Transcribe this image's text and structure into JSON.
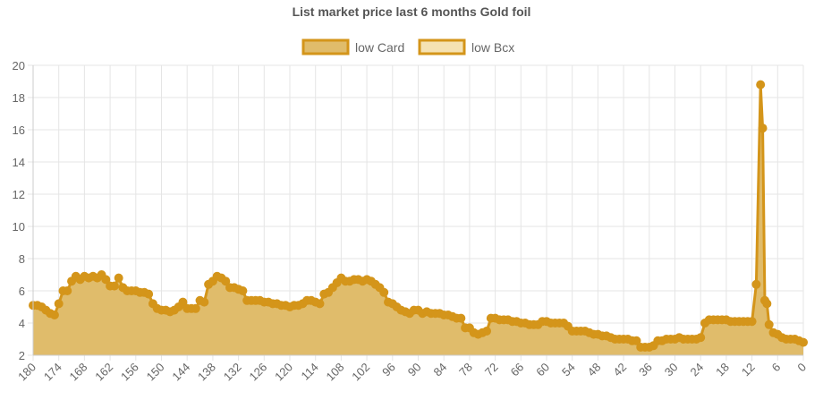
{
  "chart_data": {
    "type": "area",
    "title": "List market price last 6 months Gold foil",
    "legend_position": "top",
    "grid": true,
    "xlim": [
      180,
      0
    ],
    "ylim": [
      2,
      20
    ],
    "x_ticks": [
      180,
      174,
      168,
      162,
      156,
      150,
      144,
      138,
      132,
      126,
      120,
      114,
      108,
      102,
      96,
      90,
      84,
      78,
      72,
      66,
      60,
      54,
      48,
      42,
      36,
      30,
      24,
      18,
      12,
      6,
      0
    ],
    "y_ticks": [
      2,
      4,
      6,
      8,
      10,
      12,
      14,
      16,
      18,
      20
    ],
    "series": [
      {
        "name": "low Card",
        "color": "#d4951a",
        "fill": "#e0bc6b",
        "points": [
          [
            180,
            5.1
          ],
          [
            179,
            5.1
          ],
          [
            178,
            5.0
          ],
          [
            177,
            4.8
          ],
          [
            176,
            4.6
          ],
          [
            175,
            4.5
          ],
          [
            174,
            5.2
          ],
          [
            173,
            6.0
          ],
          [
            172,
            6.0
          ],
          [
            171,
            6.6
          ],
          [
            170,
            6.9
          ],
          [
            169,
            6.7
          ],
          [
            168,
            6.9
          ],
          [
            167,
            6.8
          ],
          [
            166,
            6.9
          ],
          [
            165,
            6.8
          ],
          [
            164,
            7.0
          ],
          [
            163,
            6.7
          ],
          [
            162,
            6.3
          ],
          [
            161,
            6.3
          ],
          [
            160,
            6.8
          ],
          [
            159,
            6.2
          ],
          [
            158,
            6.0
          ],
          [
            157,
            6.0
          ],
          [
            156,
            6.0
          ],
          [
            155,
            5.9
          ],
          [
            154,
            5.9
          ],
          [
            153,
            5.8
          ],
          [
            152,
            5.2
          ],
          [
            151,
            4.9
          ],
          [
            150,
            4.8
          ],
          [
            149,
            4.8
          ],
          [
            148,
            4.7
          ],
          [
            147,
            4.8
          ],
          [
            146,
            5.0
          ],
          [
            145,
            5.3
          ],
          [
            144,
            4.9
          ],
          [
            143,
            4.9
          ],
          [
            142,
            4.9
          ],
          [
            141,
            5.4
          ],
          [
            140,
            5.3
          ],
          [
            139,
            6.4
          ],
          [
            138,
            6.6
          ],
          [
            137,
            6.9
          ],
          [
            136,
            6.8
          ],
          [
            135,
            6.6
          ],
          [
            134,
            6.2
          ],
          [
            133,
            6.2
          ],
          [
            132,
            6.1
          ],
          [
            131,
            6.0
          ],
          [
            130,
            5.4
          ],
          [
            129,
            5.4
          ],
          [
            128,
            5.4
          ],
          [
            127,
            5.4
          ],
          [
            126,
            5.3
          ],
          [
            125,
            5.3
          ],
          [
            124,
            5.2
          ],
          [
            123,
            5.2
          ],
          [
            122,
            5.1
          ],
          [
            121,
            5.1
          ],
          [
            120,
            5.0
          ],
          [
            119,
            5.1
          ],
          [
            118,
            5.1
          ],
          [
            117,
            5.2
          ],
          [
            116,
            5.4
          ],
          [
            115,
            5.4
          ],
          [
            114,
            5.3
          ],
          [
            113,
            5.2
          ],
          [
            112,
            5.8
          ],
          [
            111,
            5.9
          ],
          [
            110,
            6.2
          ],
          [
            109,
            6.5
          ],
          [
            108,
            6.8
          ],
          [
            107,
            6.6
          ],
          [
            106,
            6.6
          ],
          [
            105,
            6.7
          ],
          [
            104,
            6.7
          ],
          [
            103,
            6.6
          ],
          [
            102,
            6.7
          ],
          [
            101,
            6.6
          ],
          [
            100,
            6.4
          ],
          [
            99,
            6.2
          ],
          [
            98,
            5.9
          ],
          [
            97,
            5.3
          ],
          [
            96,
            5.2
          ],
          [
            95,
            5.0
          ],
          [
            94,
            4.8
          ],
          [
            93,
            4.7
          ],
          [
            92,
            4.6
          ],
          [
            91,
            4.8
          ],
          [
            90,
            4.8
          ],
          [
            89,
            4.6
          ],
          [
            88,
            4.7
          ],
          [
            87,
            4.6
          ],
          [
            86,
            4.6
          ],
          [
            85,
            4.6
          ],
          [
            84,
            4.5
          ],
          [
            83,
            4.5
          ],
          [
            82,
            4.4
          ],
          [
            81,
            4.3
          ],
          [
            80,
            4.3
          ],
          [
            79,
            3.7
          ],
          [
            78,
            3.7
          ],
          [
            77,
            3.4
          ],
          [
            76,
            3.3
          ],
          [
            75,
            3.4
          ],
          [
            74,
            3.5
          ],
          [
            73,
            4.3
          ],
          [
            72,
            4.3
          ],
          [
            71,
            4.2
          ],
          [
            70,
            4.2
          ],
          [
            69,
            4.2
          ],
          [
            68,
            4.1
          ],
          [
            67,
            4.1
          ],
          [
            66,
            4.0
          ],
          [
            65,
            4.0
          ],
          [
            64,
            3.9
          ],
          [
            63,
            3.9
          ],
          [
            62,
            3.9
          ],
          [
            61,
            4.1
          ],
          [
            60,
            4.1
          ],
          [
            59,
            4.0
          ],
          [
            58,
            4.0
          ],
          [
            57,
            4.0
          ],
          [
            56,
            4.0
          ],
          [
            55,
            3.8
          ],
          [
            54,
            3.5
          ],
          [
            53,
            3.5
          ],
          [
            52,
            3.5
          ],
          [
            51,
            3.5
          ],
          [
            50,
            3.4
          ],
          [
            49,
            3.3
          ],
          [
            48,
            3.3
          ],
          [
            47,
            3.2
          ],
          [
            46,
            3.2
          ],
          [
            45,
            3.1
          ],
          [
            44,
            3.0
          ],
          [
            43,
            3.0
          ],
          [
            42,
            3.0
          ],
          [
            41,
            3.0
          ],
          [
            40,
            2.9
          ],
          [
            39,
            2.9
          ],
          [
            38,
            2.5
          ],
          [
            37,
            2.5
          ],
          [
            36,
            2.5
          ],
          [
            35,
            2.6
          ],
          [
            34,
            2.9
          ],
          [
            33,
            2.9
          ],
          [
            32,
            3.0
          ],
          [
            31,
            3.0
          ],
          [
            30,
            3.0
          ],
          [
            29,
            3.1
          ],
          [
            28,
            3.0
          ],
          [
            27,
            3.0
          ],
          [
            26,
            3.0
          ],
          [
            25,
            3.0
          ],
          [
            24,
            3.1
          ],
          [
            23,
            4.0
          ],
          [
            22,
            4.2
          ],
          [
            21,
            4.2
          ],
          [
            20,
            4.2
          ],
          [
            19,
            4.2
          ],
          [
            18,
            4.2
          ],
          [
            17,
            4.1
          ],
          [
            16,
            4.1
          ],
          [
            15,
            4.1
          ],
          [
            14,
            4.1
          ],
          [
            13,
            4.1
          ],
          [
            12,
            4.1
          ],
          [
            11,
            6.4
          ],
          [
            10,
            18.8
          ],
          [
            9.5,
            16.1
          ],
          [
            9,
            5.4
          ],
          [
            8.5,
            5.2
          ],
          [
            8,
            3.9
          ],
          [
            7,
            3.4
          ],
          [
            6,
            3.3
          ],
          [
            5,
            3.1
          ],
          [
            4,
            3.0
          ],
          [
            3,
            3.0
          ],
          [
            2,
            3.0
          ],
          [
            1,
            2.9
          ],
          [
            0,
            2.8
          ]
        ]
      },
      {
        "name": "low Bcx",
        "color": "#d4951a",
        "fill": "#f5e2b3",
        "points": []
      }
    ]
  }
}
